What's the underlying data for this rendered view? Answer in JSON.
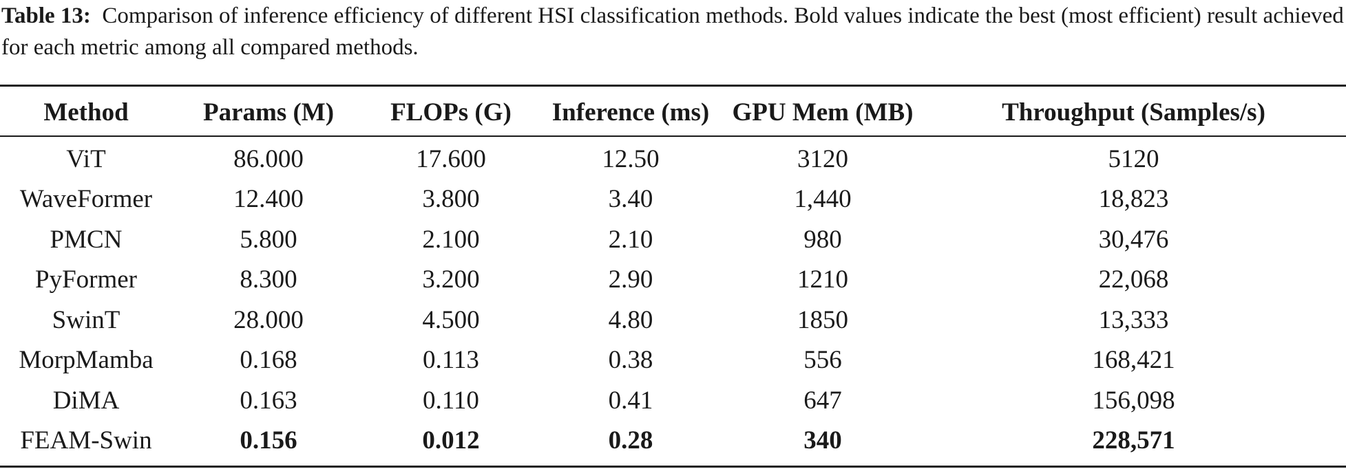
{
  "caption": {
    "label": "Table 13:",
    "text": "Comparison of inference efficiency of different HSI classification methods. Bold values indicate the best (most efficient) result achieved for each metric among all compared methods."
  },
  "table": {
    "headers": [
      "Method",
      "Params (M)",
      "FLOPs (G)",
      "Inference (ms)",
      "GPU Mem (MB)",
      "Throughput (Samples/s)"
    ],
    "rows": [
      [
        "ViT",
        "86.000",
        "17.600",
        "12.50",
        "3120",
        "5120"
      ],
      [
        "WaveFormer",
        "12.400",
        "3.800",
        "3.40",
        "1,440",
        "18,823"
      ],
      [
        "PMCN",
        "5.800",
        "2.100",
        "2.10",
        "980",
        "30,476"
      ],
      [
        "PyFormer",
        "8.300",
        "3.200",
        "2.90",
        "1210",
        "22,068"
      ],
      [
        "SwinT",
        "28.000",
        "4.500",
        "4.80",
        "1850",
        "13,333"
      ],
      [
        "MorpMamba",
        "0.168",
        "0.113",
        "0.38",
        "556",
        "168,421"
      ],
      [
        "DiMA",
        "0.163",
        "0.110",
        "0.41",
        "647",
        "156,098"
      ],
      [
        "FEAM-Swin",
        "0.156",
        "0.012",
        "0.28",
        "340",
        "228,571"
      ]
    ],
    "bold_cells": [
      [
        7,
        1
      ],
      [
        7,
        2
      ],
      [
        7,
        3
      ],
      [
        7,
        4
      ],
      [
        7,
        5
      ]
    ]
  }
}
